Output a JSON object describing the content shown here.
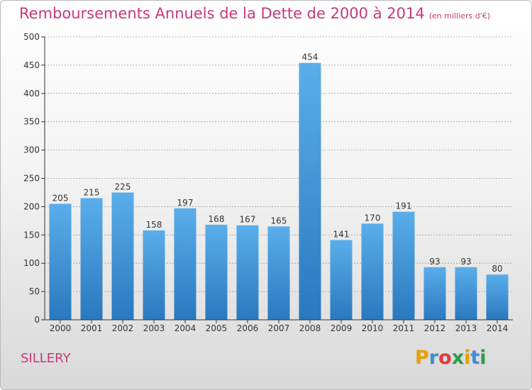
{
  "header": {
    "title": "Remboursements Annuels de la Dette de 2000 à 2014",
    "unit": "(en milliers d'€)"
  },
  "footer": {
    "commune": "SILLERY",
    "logo_letters": [
      "P",
      "r",
      "o",
      "x",
      "i",
      "t",
      "i"
    ],
    "logo_colors": [
      "#e8a000",
      "#3b8fd6",
      "#e03a3a",
      "#2e9b47",
      "#e8a000",
      "#3b8fd6",
      "#2e9b47"
    ]
  },
  "colors": {
    "title": "#c8397a",
    "bar_top": "#5aaeea",
    "bar_bottom": "#2a78bf",
    "axis": "#333333",
    "grid": "#9a9a9a"
  },
  "chart_data": {
    "type": "bar",
    "categories": [
      "2000",
      "2001",
      "2002",
      "2003",
      "2004",
      "2005",
      "2006",
      "2007",
      "2008",
      "2009",
      "2010",
      "2011",
      "2012",
      "2013",
      "2014"
    ],
    "values": [
      205,
      215,
      225,
      158,
      197,
      168,
      167,
      165,
      454,
      141,
      170,
      191,
      93,
      93,
      80
    ],
    "ylim": [
      0,
      500
    ],
    "yticks": [
      0,
      50,
      100,
      150,
      200,
      250,
      300,
      350,
      400,
      450,
      500
    ],
    "grid": true,
    "data_labels": true
  }
}
